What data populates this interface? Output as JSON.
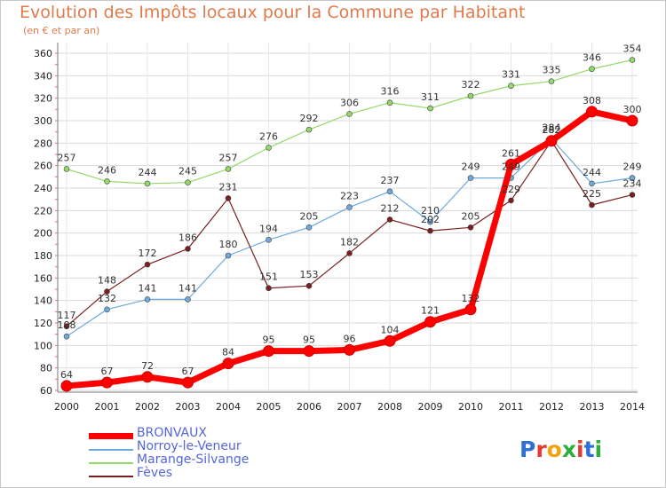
{
  "title": "Evolution des Impôts locaux pour la Commune par Habitant",
  "subtitle": "(en € et par an)",
  "logo_text": "Proxiti",
  "chart_data": {
    "type": "line",
    "title": "Evolution des Impôts locaux pour la Commune par Habitant",
    "subtitle": "(en € et par an)",
    "xlabel": "",
    "ylabel": "",
    "x": [
      "2000",
      "2001",
      "2002",
      "2003",
      "2004",
      "2005",
      "2006",
      "2007",
      "2008",
      "2009",
      "2010",
      "2011",
      "2012",
      "2013",
      "2014"
    ],
    "y_ticks": [
      "60",
      "80",
      "100",
      "120",
      "140",
      "160",
      "180",
      "200",
      "220",
      "240",
      "260",
      "280",
      "300",
      "320",
      "340",
      "360"
    ],
    "ylim": [
      60,
      360
    ],
    "grid": true,
    "legend_position": "bottom-left",
    "series": [
      {
        "name": "BRONVAUX",
        "color": "#ff0000",
        "values": [
          64,
          67,
          72,
          67,
          84,
          95,
          95,
          96,
          104,
          121,
          132,
          261,
          282,
          308,
          300
        ]
      },
      {
        "name": "Norroy-le-Veneur",
        "color": "#6fa8dc",
        "values": [
          108,
          132,
          141,
          141,
          180,
          194,
          205,
          223,
          237,
          210,
          249,
          249,
          284,
          244,
          249
        ]
      },
      {
        "name": "Marange-Silvange",
        "color": "#93d86a",
        "values": [
          257,
          246,
          244,
          245,
          257,
          276,
          292,
          306,
          316,
          311,
          322,
          331,
          335,
          346,
          354
        ]
      },
      {
        "name": "Fèves",
        "color": "#7a1f1f",
        "values": [
          117,
          148,
          172,
          186,
          231,
          151,
          153,
          182,
          212,
          202,
          205,
          229,
          282,
          225,
          234
        ]
      }
    ]
  }
}
